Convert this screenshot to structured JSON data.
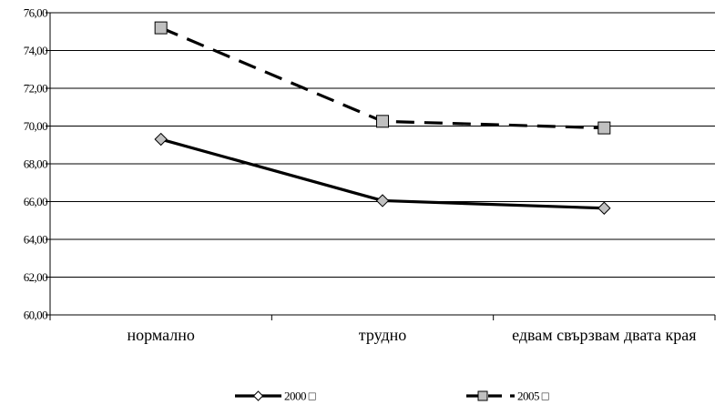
{
  "chart_data": {
    "type": "line",
    "categories": [
      "нормално",
      "трудно",
      "едвам свързвам двата края"
    ],
    "ylim": [
      60,
      76
    ],
    "yticks": [
      60,
      62,
      64,
      66,
      68,
      70,
      72,
      74,
      76
    ],
    "ytick_labels": [
      "60,00",
      "62,00",
      "64,00",
      "66,00",
      "68,00",
      "70,00",
      "72,00",
      "74,00",
      "76,00"
    ],
    "grid": true,
    "legend_position": "bottom",
    "series": [
      {
        "name": "2000 □",
        "values": [
          69.3,
          66.05,
          65.65
        ],
        "color": "#000000",
        "line_style": "solid",
        "marker": "diamond",
        "marker_fill": "#c0c0c0"
      },
      {
        "name": "2005 □",
        "values": [
          75.2,
          70.25,
          69.9
        ],
        "color": "#000000",
        "line_style": "dashed",
        "marker": "square",
        "marker_fill": "#c0c0c0"
      }
    ]
  }
}
